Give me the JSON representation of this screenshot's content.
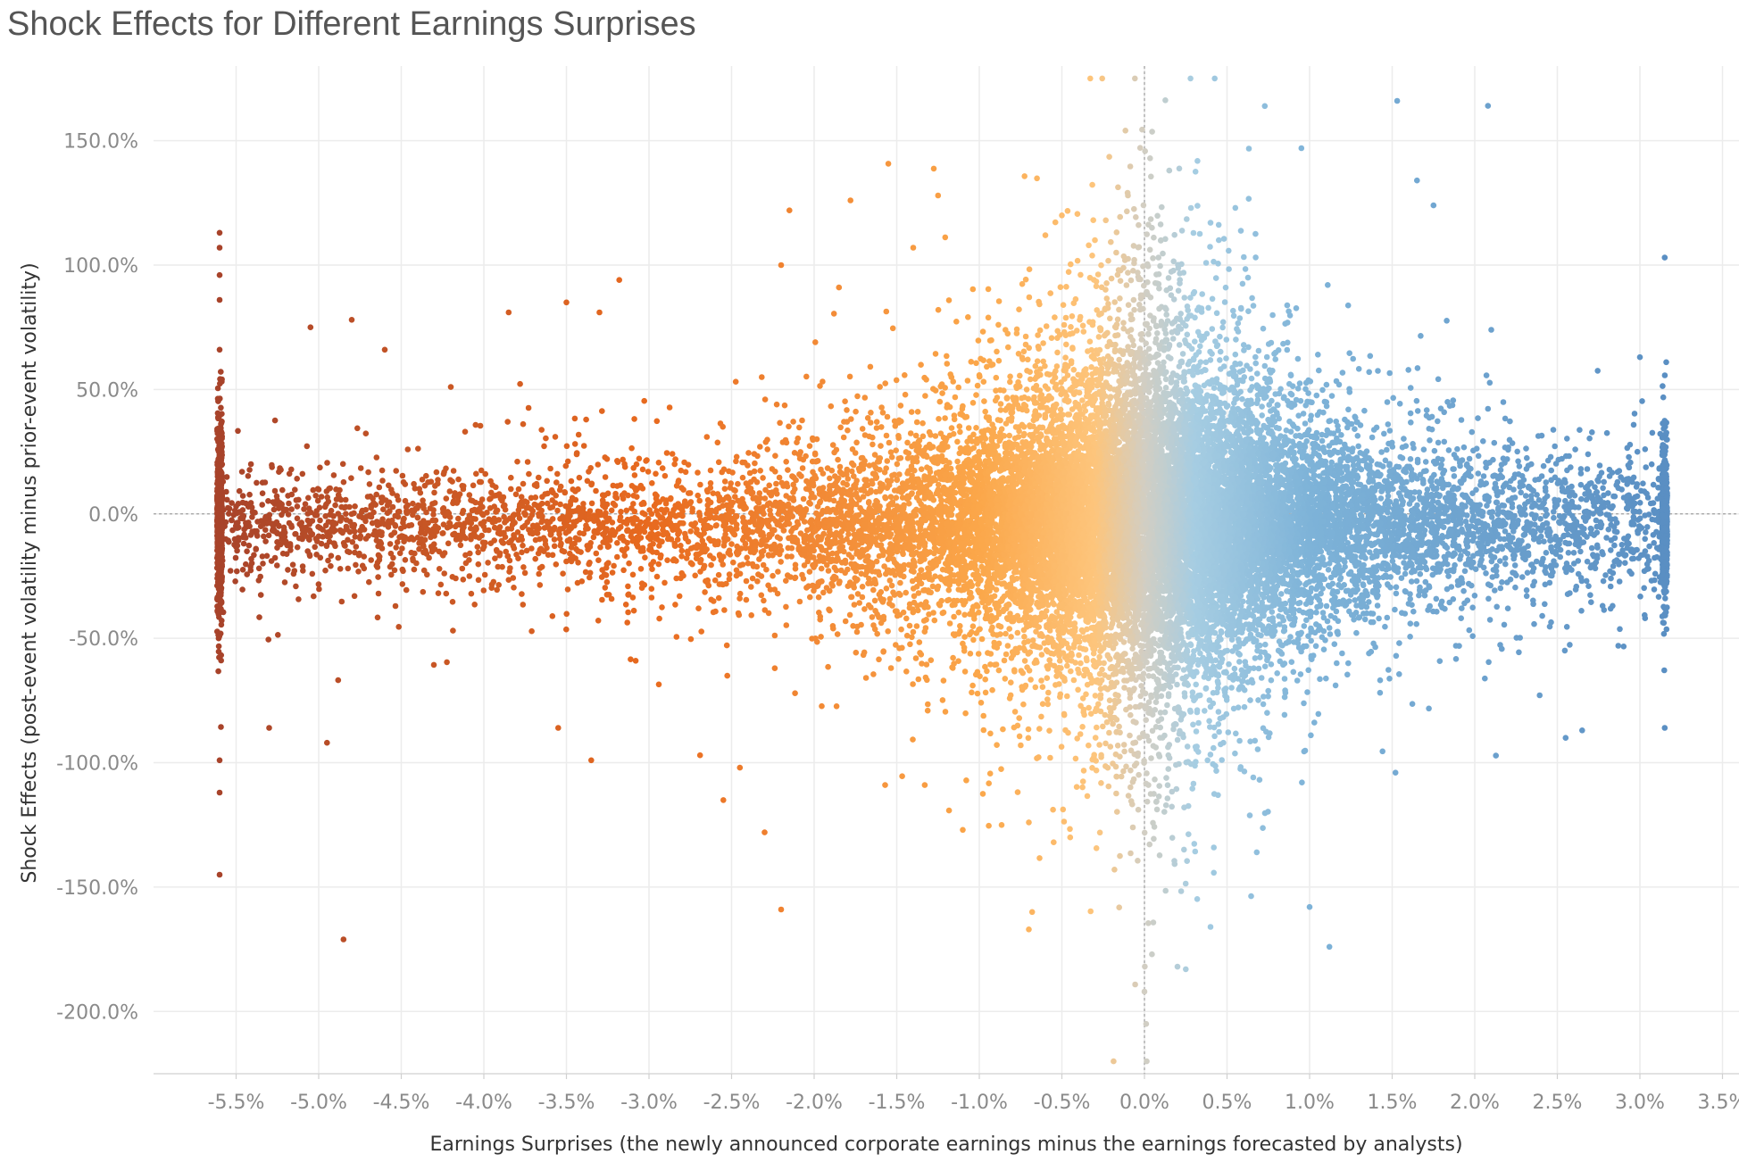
{
  "chart_data": {
    "type": "scatter",
    "title": "Shock Effects for Different Earnings Surprises",
    "xlabel": "Earnings Surprises (the newly announced corporate earnings minus the earnings forecasted by analysts)",
    "ylabel": "Shock Effects (post-event volatility minus prior-event volatility)",
    "xlim": [
      -6.0,
      3.6
    ],
    "ylim": [
      -225,
      180
    ],
    "x_unit": "%",
    "y_unit": "%",
    "grid": true,
    "legend": "none",
    "reference_lines": {
      "x": 0.0,
      "y": 0.0
    },
    "x_ticks": [
      "-5.5%",
      "-5.0%",
      "-4.5%",
      "-4.0%",
      "-3.5%",
      "-3.0%",
      "-2.5%",
      "-2.0%",
      "-1.5%",
      "-1.0%",
      "-0.5%",
      "0.0%",
      "0.5%",
      "1.0%",
      "1.5%",
      "2.0%",
      "2.5%",
      "3.0%",
      "3.5%"
    ],
    "x_tick_values": [
      -5.5,
      -5.0,
      -4.5,
      -4.0,
      -3.5,
      -3.0,
      -2.5,
      -2.0,
      -1.5,
      -1.0,
      -0.5,
      0.0,
      0.5,
      1.0,
      1.5,
      2.0,
      2.5,
      3.0,
      3.5
    ],
    "y_ticks": [
      "150.0%",
      "100.0%",
      "50.0%",
      "0.0%",
      "-50.0%",
      "-100.0%",
      "-150.0%",
      "-200.0%"
    ],
    "y_tick_values": [
      150,
      100,
      50,
      0,
      -50,
      -100,
      -150,
      -200
    ],
    "x_clip_min": -5.6,
    "x_clip_max": 3.15,
    "color_scale": {
      "stops": [
        -5.6,
        -3.0,
        -1.0,
        -0.3,
        0.0,
        0.3,
        1.0,
        3.15
      ],
      "colors": [
        "#a8432a",
        "#e86a1f",
        "#fba74a",
        "#fdc57c",
        "#d2cec3",
        "#a6cde2",
        "#7eb3d8",
        "#5a8fc3"
      ]
    },
    "sample_points": [
      {
        "x": -5.6,
        "y": 113
      },
      {
        "x": -5.6,
        "y": 107
      },
      {
        "x": -5.6,
        "y": 96
      },
      {
        "x": -5.6,
        "y": 86
      },
      {
        "x": -5.6,
        "y": 66
      },
      {
        "x": -5.6,
        "y": -99
      },
      {
        "x": -5.6,
        "y": -112
      },
      {
        "x": -5.6,
        "y": -145
      },
      {
        "x": -5.3,
        "y": -86
      },
      {
        "x": -5.05,
        "y": 75
      },
      {
        "x": -4.95,
        "y": -92
      },
      {
        "x": -4.85,
        "y": -171
      },
      {
        "x": -4.8,
        "y": 78
      },
      {
        "x": -4.6,
        "y": 66
      },
      {
        "x": -4.2,
        "y": 51
      },
      {
        "x": -3.85,
        "y": 81
      },
      {
        "x": -3.5,
        "y": 85
      },
      {
        "x": -3.3,
        "y": 81
      },
      {
        "x": -3.18,
        "y": 94
      },
      {
        "x": -3.35,
        "y": -99
      },
      {
        "x": -3.55,
        "y": -86
      },
      {
        "x": -2.55,
        "y": -115
      },
      {
        "x": -2.45,
        "y": -102
      },
      {
        "x": -2.3,
        "y": -128
      },
      {
        "x": -2.2,
        "y": -159
      },
      {
        "x": -2.2,
        "y": 100
      },
      {
        "x": -2.15,
        "y": 122
      },
      {
        "x": -1.78,
        "y": 126
      },
      {
        "x": -1.85,
        "y": 91
      },
      {
        "x": -1.57,
        "y": -109
      },
      {
        "x": -1.4,
        "y": 107
      },
      {
        "x": -1.33,
        "y": -109
      },
      {
        "x": -1.25,
        "y": 128
      },
      {
        "x": -1.1,
        "y": -127
      },
      {
        "x": -0.7,
        "y": -167
      },
      {
        "x": -0.68,
        "y": -160
      },
      {
        "x": -0.7,
        "y": -124
      },
      {
        "x": -0.55,
        "y": -132
      },
      {
        "x": -0.45,
        "y": -130
      },
      {
        "x": -0.6,
        "y": 112
      },
      {
        "x": -0.5,
        "y": 120
      },
      {
        "x": -0.3,
        "y": 110
      },
      {
        "x": -0.1,
        "y": 128
      },
      {
        "x": -0.07,
        "y": -126
      },
      {
        "x": 0.0,
        "y": -192
      },
      {
        "x": 0.01,
        "y": -205
      },
      {
        "x": 0.15,
        "y": 138
      },
      {
        "x": 0.2,
        "y": -182
      },
      {
        "x": 0.25,
        "y": -183
      },
      {
        "x": 0.4,
        "y": 117
      },
      {
        "x": 0.45,
        "y": 110
      },
      {
        "x": 0.55,
        "y": 123
      },
      {
        "x": 0.4,
        "y": -166
      },
      {
        "x": 0.68,
        "y": -136
      },
      {
        "x": 0.95,
        "y": 147
      },
      {
        "x": 1.0,
        "y": -158
      },
      {
        "x": 1.12,
        "y": -174
      },
      {
        "x": 1.53,
        "y": 166
      },
      {
        "x": 1.65,
        "y": 134
      },
      {
        "x": 1.75,
        "y": 124
      },
      {
        "x": 2.08,
        "y": 164
      },
      {
        "x": 2.1,
        "y": 74
      },
      {
        "x": 1.52,
        "y": -104
      },
      {
        "x": 2.65,
        "y": -87
      },
      {
        "x": 2.55,
        "y": -90
      },
      {
        "x": 3.15,
        "y": 103
      },
      {
        "x": 3.15,
        "y": -86
      },
      {
        "x": 3.0,
        "y": 63
      }
    ],
    "density": {
      "bulk_points": 20000,
      "edge_points_left": 700,
      "edge_points_right": 700,
      "seed": 1337
    }
  }
}
